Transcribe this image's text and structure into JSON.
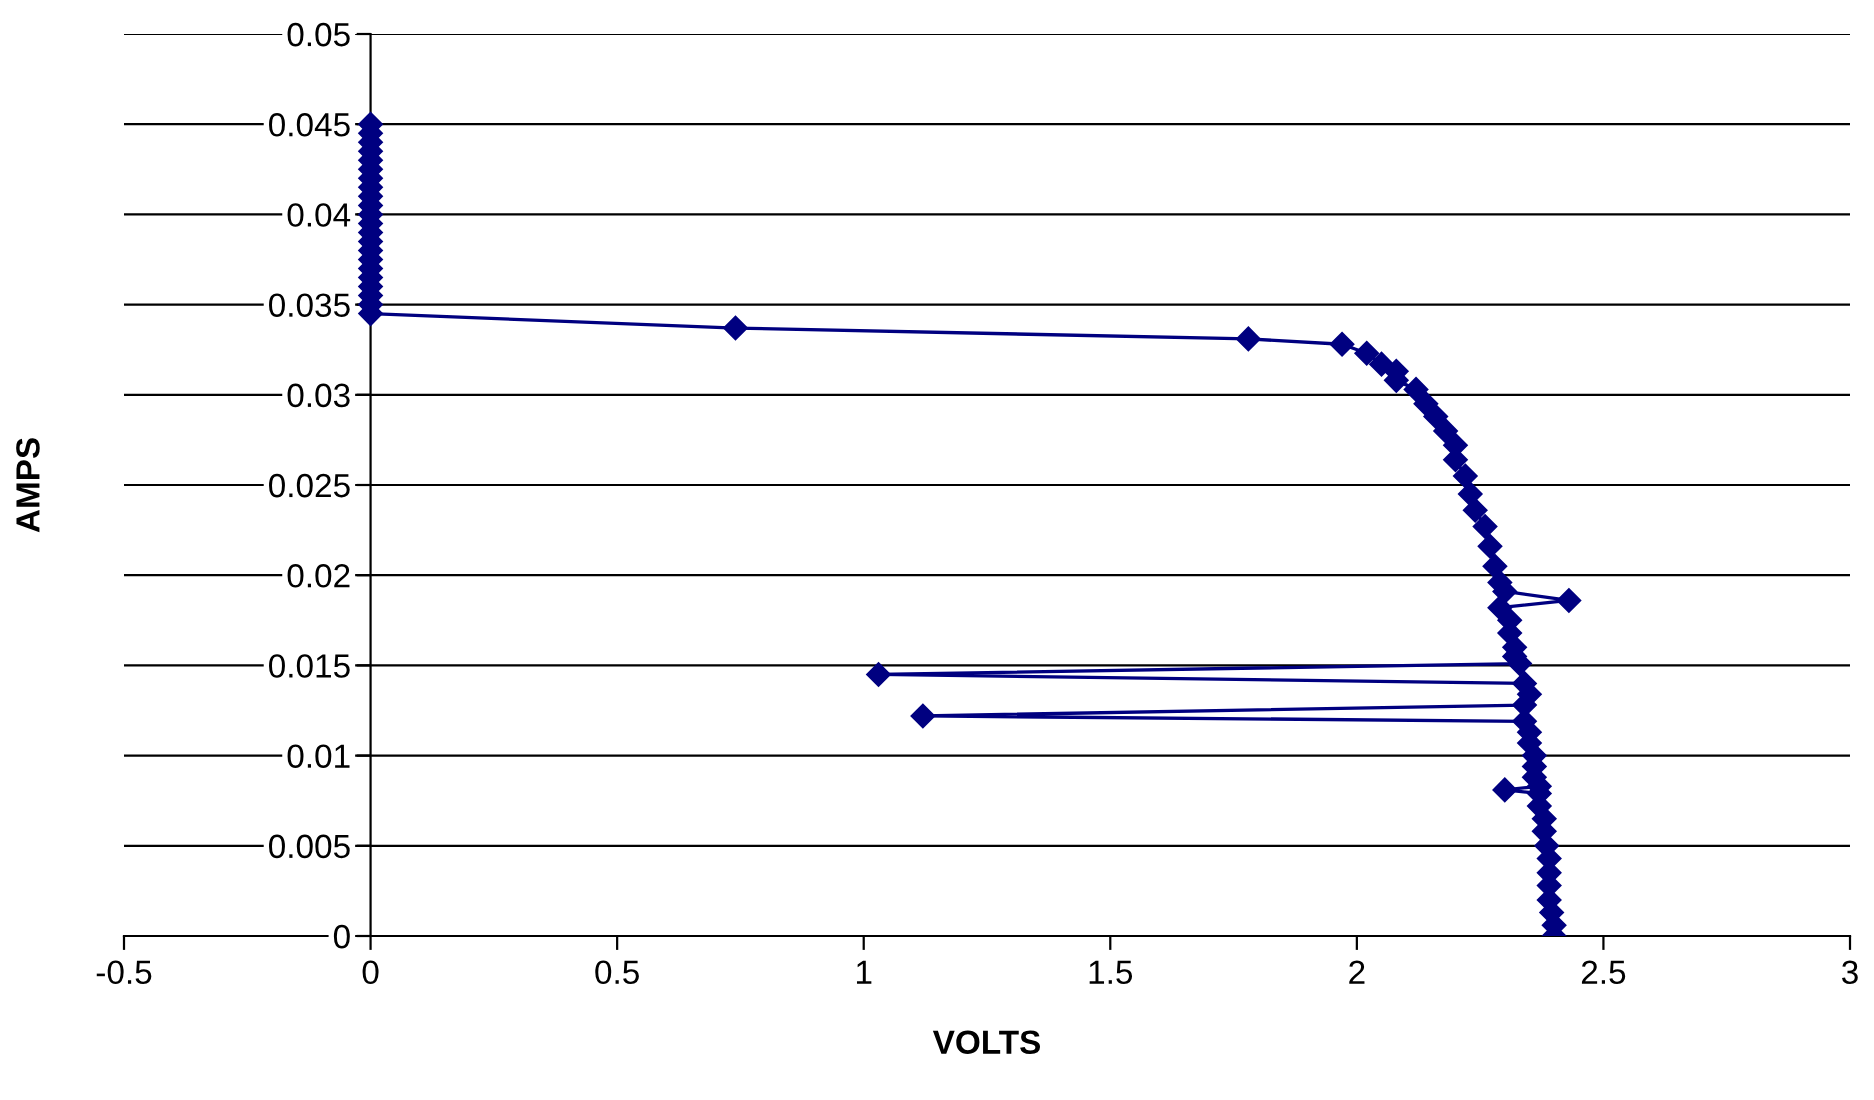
{
  "chart_data": {
    "type": "line",
    "xlabel": "VOLTS",
    "ylabel": "AMPS",
    "xlim": [
      -0.5,
      3
    ],
    "xticks": [
      -0.5,
      0,
      0.5,
      1,
      1.5,
      2,
      2.5,
      3
    ],
    "ylim": [
      0,
      0.05
    ],
    "yticks": [
      0,
      0.005,
      0.01,
      0.015,
      0.02,
      0.025,
      0.03,
      0.035,
      0.04,
      0.045,
      0.05
    ],
    "grid": "y",
    "marker": "diamond",
    "line_style": "solid",
    "series": [
      {
        "color": "#000080",
        "x": [
          0,
          0,
          0,
          0,
          0,
          0,
          0,
          0,
          0,
          0,
          0,
          0,
          0,
          0,
          0,
          0,
          0,
          0,
          0,
          0,
          0,
          0,
          0.74,
          1.78,
          1.97,
          2.02,
          2.05,
          2.08,
          2.08,
          2.12,
          2.14,
          2.16,
          2.18,
          2.2,
          2.2,
          2.22,
          2.23,
          2.24,
          2.26,
          2.27,
          2.28,
          2.29,
          2.3,
          2.43,
          2.29,
          2.31,
          2.31,
          2.32,
          2.32,
          2.33,
          1.03,
          2.34,
          2.35,
          2.34,
          1.12,
          2.34,
          2.35,
          2.35,
          2.36,
          2.36,
          2.36,
          2.37,
          2.3,
          2.37,
          2.37,
          2.38,
          2.38,
          2.385,
          2.39,
          2.39,
          2.39,
          2.39,
          2.395,
          2.4,
          2.4
        ],
        "values": [
          0.045,
          0.0445,
          0.044,
          0.0435,
          0.043,
          0.0425,
          0.042,
          0.0415,
          0.041,
          0.0405,
          0.04,
          0.0395,
          0.039,
          0.0385,
          0.038,
          0.0375,
          0.037,
          0.0365,
          0.036,
          0.0355,
          0.035,
          0.0345,
          0.0337,
          0.0331,
          0.0328,
          0.0323,
          0.0317,
          0.0313,
          0.0308,
          0.0303,
          0.0295,
          0.0288,
          0.028,
          0.0272,
          0.0264,
          0.0255,
          0.0245,
          0.0236,
          0.0227,
          0.0216,
          0.0205,
          0.0196,
          0.0191,
          0.0186,
          0.0182,
          0.0175,
          0.0168,
          0.016,
          0.0155,
          0.0151,
          0.0145,
          0.014,
          0.0134,
          0.0128,
          0.0122,
          0.0119,
          0.0113,
          0.0107,
          0.01,
          0.0094,
          0.0088,
          0.0083,
          0.0081,
          0.0079,
          0.0072,
          0.0065,
          0.0058,
          0.005,
          0.0043,
          0.0035,
          0.0028,
          0.002,
          0.0013,
          0.0006,
          0
        ]
      }
    ]
  }
}
